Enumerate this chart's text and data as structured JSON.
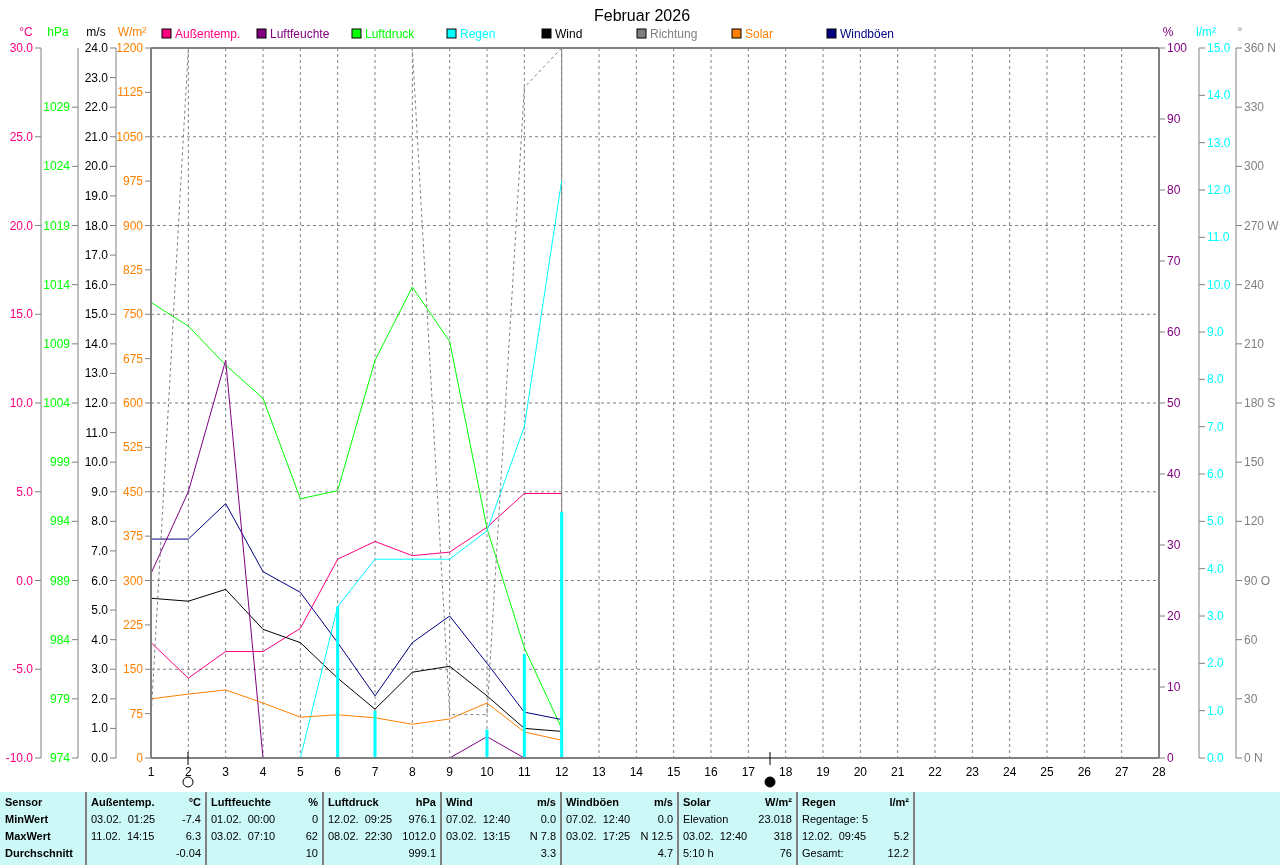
{
  "chart_data": [
    {
      "type": "line",
      "title": "Februar 2026",
      "x": [
        1,
        2,
        3,
        4,
        5,
        6,
        7,
        8,
        9,
        10,
        11,
        12
      ],
      "xlim": [
        1,
        28
      ],
      "xticks": [
        1,
        2,
        3,
        4,
        5,
        6,
        7,
        8,
        9,
        10,
        11,
        12,
        13,
        14,
        15,
        16,
        17,
        18,
        19,
        20,
        21,
        22,
        23,
        24,
        25,
        26,
        27,
        28
      ],
      "ylabel": "°C",
      "ylim": [
        -10,
        30
      ],
      "yticks": [
        {
          "value": -10,
          "label": "-10.0"
        },
        {
          "value": -5,
          "label": "-5.0"
        },
        {
          "value": 0,
          "label": "0.0"
        },
        {
          "value": 5,
          "label": "5.0"
        },
        {
          "value": 10,
          "label": "10.0"
        },
        {
          "value": 15,
          "label": "15.0"
        },
        {
          "value": 20,
          "label": "20.0"
        },
        {
          "value": 25,
          "label": "25.0"
        },
        {
          "value": 30,
          "label": "30.0"
        }
      ],
      "y2label": "hPa",
      "y2lim": [
        974,
        1034
      ],
      "y2ticks": [
        974,
        979,
        984,
        989,
        994,
        999,
        1004,
        1009,
        1014,
        1019,
        1024,
        1029
      ],
      "y3label": "m/s",
      "y3lim": [
        0,
        24
      ],
      "y3ticks": [
        {
          "value": 0,
          "label": "0.0"
        },
        {
          "value": 1,
          "label": "1.0"
        },
        {
          "value": 2,
          "label": "2.0"
        },
        {
          "value": 3,
          "label": "3.0"
        },
        {
          "value": 4,
          "label": "4.0"
        },
        {
          "value": 5,
          "label": "5.0"
        },
        {
          "value": 6,
          "label": "6.0"
        },
        {
          "value": 7,
          "label": "7.0"
        },
        {
          "value": 8,
          "label": "8.0"
        },
        {
          "value": 9,
          "label": "9.0"
        },
        {
          "value": 10,
          "label": "10.0"
        },
        {
          "value": 11,
          "label": "11.0"
        },
        {
          "value": 12,
          "label": "12.0"
        },
        {
          "value": 13,
          "label": "13.0"
        },
        {
          "value": 14,
          "label": "14.0"
        },
        {
          "value": 15,
          "label": "15.0"
        },
        {
          "value": 16,
          "label": "16.0"
        },
        {
          "value": 17,
          "label": "17.0"
        },
        {
          "value": 18,
          "label": "18.0"
        },
        {
          "value": 19,
          "label": "19.0"
        },
        {
          "value": 20,
          "label": "20.0"
        },
        {
          "value": 21,
          "label": "21.0"
        },
        {
          "value": 22,
          "label": "22.0"
        },
        {
          "value": 23,
          "label": "23.0"
        },
        {
          "value": 24,
          "label": "24.0"
        }
      ],
      "grid": true,
      "legend": "top",
      "series": [
        {
          "name": "Außentemp.",
          "color": "#ff0080",
          "values": [
            -3.5,
            -5.5,
            -4.0,
            -4.0,
            -2.7,
            1.2,
            2.2,
            1.4,
            1.6,
            3.0,
            4.9,
            4.9
          ]
        },
        {
          "name": "Luftdruck",
          "color": "#00ff00",
          "axis": "y2",
          "values": [
            1012.5,
            1010.5,
            1007.2,
            1004.4,
            995.9,
            996.6,
            1007.6,
            1013.8,
            1009.2,
            993.4,
            983.3,
            976.5
          ]
        },
        {
          "name": "Wind",
          "color": "#000000",
          "axis": "y3",
          "values": [
            5.4,
            5.3,
            5.7,
            4.35,
            3.9,
            2.7,
            1.65,
            2.9,
            3.1,
            2.1,
            1.0,
            0.9
          ]
        },
        {
          "name": "Windböen",
          "color": "#000080",
          "axis": "y3",
          "values": [
            7.4,
            7.4,
            8.6,
            6.3,
            5.6,
            3.9,
            2.1,
            3.9,
            4.8,
            3.2,
            1.55,
            1.3
          ]
        }
      ],
      "ref_lines": [
        {
          "axis": "x",
          "value": 12,
          "color": "#808080"
        }
      ],
      "annotations": [
        "Sensor",
        "MinWert",
        "MaxWert",
        "Durchschnitt",
        "Außentemp.",
        "°C",
        "03.02.  01:25",
        "-7.4",
        "11.02.  14:15",
        "6.3",
        "-0.04",
        "Luftfeuchte",
        "%",
        "01.02.  00:00",
        "0",
        "03.02.  07:10",
        "62",
        "10",
        "Luftdruck",
        "hPa",
        "12.02.  09:25",
        "976.1",
        "08.02.  22:30",
        "1012.0",
        "999.1",
        "Wind",
        "m/s",
        "07.02.  12:40",
        "0.0",
        "03.02.  13:15",
        "N 7.8",
        "3.3",
        "Windböen",
        "m/s",
        "07.02.  12:40",
        "0.0",
        "03.02.  17:25",
        "N 12.5",
        "4.7",
        "Solar",
        "W/m²",
        "Elevation",
        "23.018",
        "03.02.  12:40",
        "318",
        "5:10 h",
        "76",
        "Regen",
        "l/m²",
        "Regentage: 5",
        "12.02.  09:45",
        "5.2",
        "Gesamt:",
        "12.2"
      ]
    },
    {
      "type": "line",
      "x": [
        1,
        2,
        3,
        4,
        5,
        6,
        7,
        8,
        9,
        10,
        11,
        12
      ],
      "xlim": [
        1,
        28
      ],
      "tick_labels": "y",
      "ylabel": "W/m²",
      "ylim": [
        0,
        1200
      ],
      "yticks": [
        0,
        75,
        150,
        225,
        300,
        375,
        450,
        525,
        600,
        675,
        750,
        825,
        900,
        975,
        1050,
        1125,
        1200
      ],
      "y2label": "%",
      "y2lim": [
        0,
        100
      ],
      "y2ticks": [
        0,
        10,
        20,
        30,
        40,
        50,
        60,
        70,
        80,
        90,
        100
      ],
      "y3label": "l/m²",
      "y3lim": [
        0,
        15
      ],
      "y3ticks": [
        {
          "value": 0,
          "label": "0.0"
        },
        {
          "value": 1,
          "label": "1.0"
        },
        {
          "value": 2,
          "label": "2.0"
        },
        {
          "value": 3,
          "label": "3.0"
        },
        {
          "value": 4,
          "label": "4.0"
        },
        {
          "value": 5,
          "label": "5.0"
        },
        {
          "value": 6,
          "label": "6.0"
        },
        {
          "value": 7,
          "label": "7.0"
        },
        {
          "value": 8,
          "label": "8.0"
        },
        {
          "value": 9,
          "label": "9.0"
        },
        {
          "value": 10,
          "label": "10.0"
        },
        {
          "value": 11,
          "label": "11.0"
        },
        {
          "value": 12,
          "label": "12.0"
        },
        {
          "value": 13,
          "label": "13.0"
        },
        {
          "value": 14,
          "label": "14.0"
        },
        {
          "value": 15,
          "label": "15.0"
        }
      ],
      "legend": "top",
      "series": [
        {
          "name": "Luftfeuchte",
          "color": "#800080",
          "axis": "y2",
          "values": [
            26,
            37.5,
            56,
            0,
            null,
            null,
            null,
            null,
            0,
            3,
            0,
            null
          ]
        },
        {
          "name": "Regen",
          "color": "#00ffff",
          "axis": "y3",
          "values": [
            null,
            null,
            null,
            null,
            0,
            3.2,
            4.2,
            4.2,
            4.2,
            4.8,
            7.0,
            12.2
          ]
        },
        {
          "name": "Solar",
          "color": "#ff8000",
          "values": [
            100,
            108,
            115,
            93,
            69,
            73,
            68,
            57,
            66,
            93,
            44,
            30
          ]
        },
        {
          "type": "bar",
          "color": "#00ffff",
          "axis": "y3",
          "values": [
            null,
            null,
            null,
            null,
            null,
            3.2,
            1.0,
            null,
            null,
            0.6,
            2.2,
            5.2
          ]
        }
      ]
    },
    {
      "type": "line",
      "x": [
        1,
        2,
        3,
        4,
        5,
        6,
        7,
        8,
        9,
        10,
        11,
        12
      ],
      "xlim": [
        1,
        28
      ],
      "tick_labels": "y",
      "ylabel": "°",
      "ylim": [
        0,
        360
      ],
      "yticks": [
        {
          "value": 0,
          "label": "0 N"
        },
        30,
        60,
        {
          "value": 90,
          "label": "90 O"
        },
        120,
        150,
        {
          "value": 180,
          "label": "180 S"
        },
        210,
        240,
        {
          "value": 270,
          "label": "270 W"
        },
        300,
        330,
        {
          "value": 360,
          "label": "360 N"
        }
      ],
      "legend": "top",
      "series": [
        {
          "name": "Richtung",
          "color": "#808080",
          "line_style": "dashed",
          "values": [
            20,
            360,
            360,
            360,
            360,
            360,
            360,
            360,
            22,
            22,
            340,
            360
          ]
        }
      ]
    }
  ]
}
